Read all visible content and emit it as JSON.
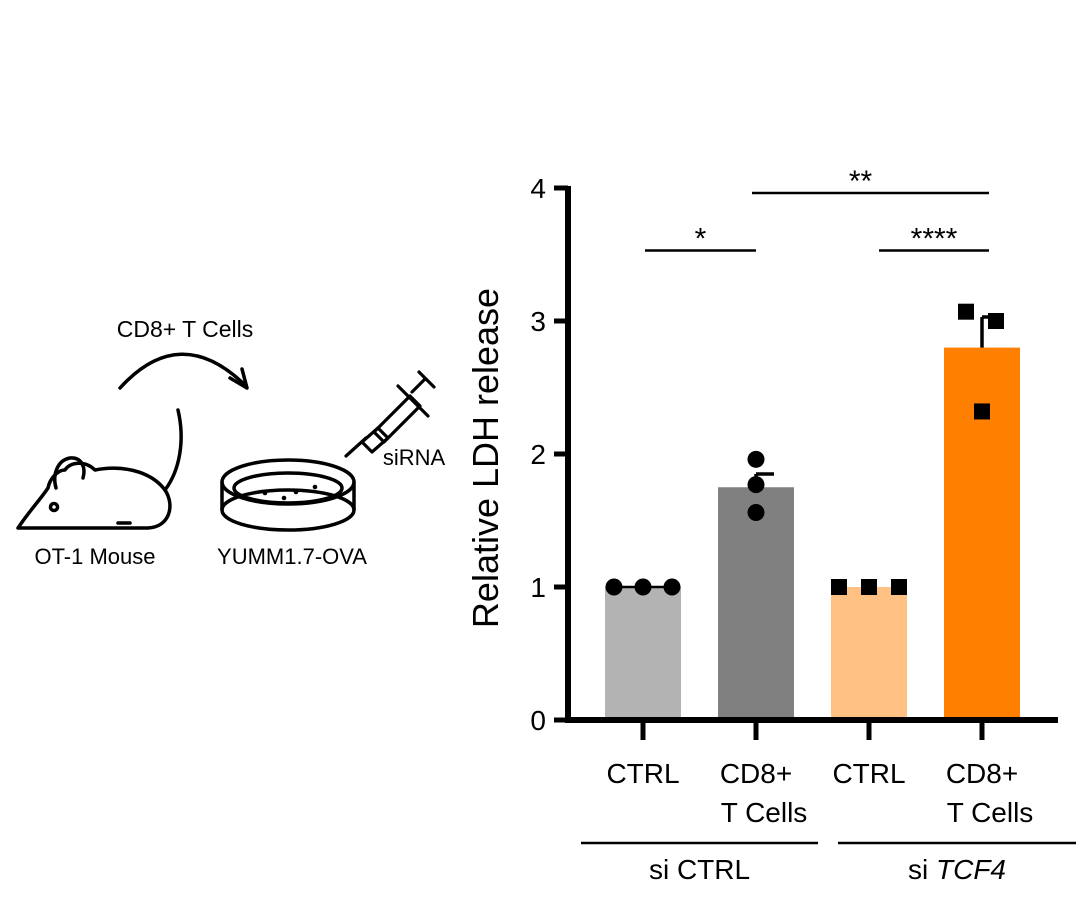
{
  "schematic": {
    "arrow_label": "CD8+ T Cells",
    "mouse_label": "OT-1 Mouse",
    "dish_label": "YUMM1.7-OVA",
    "pipette_label": "siRNA",
    "icons": [
      "mouse-icon",
      "petri-dish-icon",
      "pipette-icon",
      "curved-arrow-icon"
    ]
  },
  "chart_data": {
    "type": "bar",
    "ylabel": "Relative LDH release",
    "ylim": [
      0,
      4
    ],
    "yticks": [
      0,
      1,
      2,
      3,
      4
    ],
    "categories": [
      {
        "line1": "CTRL",
        "line2": ""
      },
      {
        "line1": "CD8+",
        "line2": "T Cells"
      },
      {
        "line1": "CTRL",
        "line2": ""
      },
      {
        "line1": "CD8+",
        "line2": "T Cells"
      }
    ],
    "groups": [
      {
        "prefix": "si ",
        "name": "CTRL",
        "italic": false,
        "categories": [
          0,
          1
        ]
      },
      {
        "prefix": "si ",
        "name": "TCF4",
        "italic": true,
        "categories": [
          2,
          3
        ]
      }
    ],
    "values": [
      1.0,
      1.75,
      1.0,
      2.8
    ],
    "errors": [
      0.0,
      0.1,
      0.0,
      0.23
    ],
    "colors": [
      "#b3b3b3",
      "#808080",
      "#fec183",
      "#ff7f00"
    ],
    "points": [
      {
        "marker": "circle",
        "values": [
          1.0,
          1.0,
          1.0
        ]
      },
      {
        "marker": "circle",
        "values": [
          1.96,
          1.77,
          1.56
        ]
      },
      {
        "marker": "square",
        "values": [
          1.0,
          1.0,
          1.0
        ]
      },
      {
        "marker": "square",
        "values": [
          3.07,
          3.0,
          2.32
        ]
      }
    ],
    "significance": [
      {
        "from": 0,
        "to": 1,
        "label": "*",
        "level": 3.53
      },
      {
        "from": 2,
        "to": 3,
        "label": "****",
        "level": 3.53
      },
      {
        "from": 1,
        "to": 3,
        "label": "**",
        "level": 4.0
      }
    ]
  }
}
